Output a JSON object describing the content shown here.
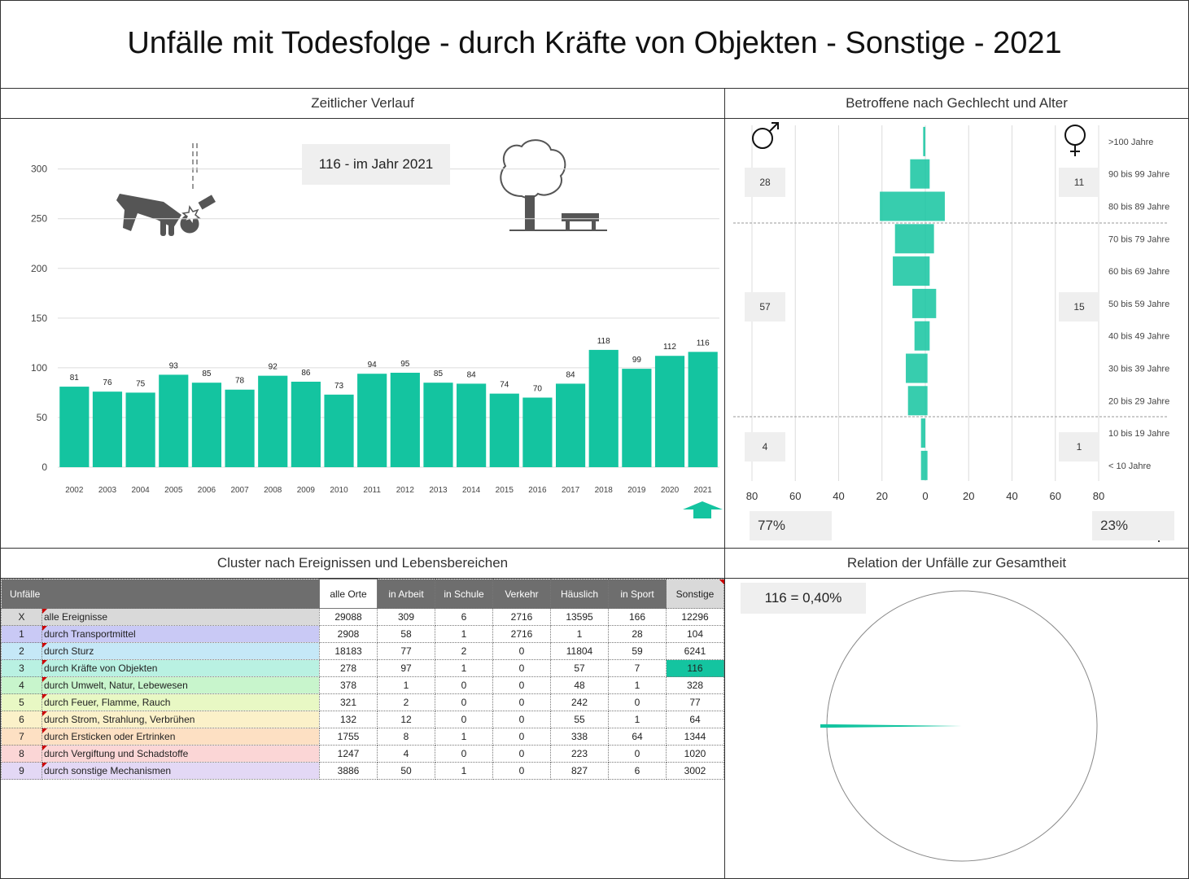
{
  "title": "Unfälle mit Todesfolge - durch Kräfte von Objekten - Sonstige - 2021",
  "colors": {
    "accent": "#14c4a0",
    "header_gray": "#6e6e6e"
  },
  "panels": {
    "timeline_title": "Zeitlicher Verlauf",
    "pyramid_title": "Betroffene nach Gechlecht und Alter",
    "cluster_title": "Cluster nach Ereignissen und Lebensbereichen",
    "relation_title": "Relation der Unfälle zur Gesamtheit"
  },
  "timeline_callout": "116 - im Jahr 2021",
  "pyramid": {
    "male_pct": "77%",
    "female_pct": "23%",
    "male_groups": [
      "28",
      "57",
      "4"
    ],
    "female_groups": [
      "11",
      "15",
      "1"
    ]
  },
  "relation_callout": "116 =  0,40%",
  "chart_data": [
    {
      "type": "bar",
      "title": "Zeitlicher Verlauf",
      "categories": [
        "2002",
        "2003",
        "2004",
        "2005",
        "2006",
        "2007",
        "2008",
        "2009",
        "2010",
        "2011",
        "2012",
        "2013",
        "2014",
        "2015",
        "2016",
        "2017",
        "2018",
        "2019",
        "2020",
        "2021"
      ],
      "values": [
        81,
        76,
        75,
        93,
        85,
        78,
        92,
        86,
        73,
        94,
        95,
        85,
        84,
        74,
        70,
        84,
        118,
        99,
        112,
        116
      ],
      "ylim": [
        0,
        330
      ],
      "yticks": [
        "0",
        "50",
        "100",
        "150",
        "200",
        "250",
        "300"
      ],
      "grid": true
    },
    {
      "type": "bar",
      "title": "Betroffene nach Gechlecht und Alter",
      "orientation": "horizontal",
      "categories": [
        ">100 Jahre",
        "90 bis 99 Jahre",
        "80 bis 89 Jahre",
        "70 bis 79 Jahre",
        "60 bis 69 Jahre",
        "50 bis 59 Jahre",
        "40 bis 49 Jahre",
        "30 bis 39 Jahre",
        "20 bis 29 Jahre",
        "10 bis 19 Jahre",
        "< 10 Jahre"
      ],
      "series": [
        {
          "values": [
            1,
            7,
            21,
            14,
            15,
            6,
            5,
            9,
            8,
            2,
            2
          ]
        },
        {
          "values": [
            0,
            2,
            9,
            4,
            2,
            5,
            2,
            1,
            1,
            0,
            1
          ]
        }
      ],
      "xticks": [
        "80",
        "60",
        "40",
        "20",
        "0",
        "20",
        "40",
        "60",
        "80"
      ],
      "xlim": [
        -80,
        80
      ]
    },
    {
      "type": "pie",
      "title": "Relation der Unfälle zur Gesamtheit",
      "values": [
        0.4,
        99.6
      ]
    }
  ],
  "table": {
    "headers": [
      "Unfälle",
      "alle Orte",
      "in Arbeit",
      "in Schule",
      "Verkehr",
      "Häuslich",
      "in Sport",
      "Sonstige"
    ],
    "rows": [
      {
        "id": "X",
        "label": "alle Ereignisse",
        "color": "#d9d9d9",
        "values": [
          "29088",
          "309",
          "6",
          "2716",
          "13595",
          "166",
          "12296"
        ]
      },
      {
        "id": "1",
        "label": "durch Transportmittel",
        "color": "#c9c9f5",
        "values": [
          "2908",
          "58",
          "1",
          "2716",
          "1",
          "28",
          "104"
        ]
      },
      {
        "id": "2",
        "label": "durch Sturz",
        "color": "#c5e8f7",
        "values": [
          "18183",
          "77",
          "2",
          "0",
          "11804",
          "59",
          "6241"
        ]
      },
      {
        "id": "3",
        "label": "durch Kräfte von Objekten",
        "color": "#b9f1e2",
        "values": [
          "278",
          "97",
          "1",
          "0",
          "57",
          "7",
          "116"
        ]
      },
      {
        "id": "4",
        "label": "durch Umwelt, Natur, Lebewesen",
        "color": "#c8f5cc",
        "values": [
          "378",
          "1",
          "0",
          "0",
          "48",
          "1",
          "328"
        ]
      },
      {
        "id": "5",
        "label": "durch Feuer, Flamme, Rauch",
        "color": "#e8f8c4",
        "values": [
          "321",
          "2",
          "0",
          "0",
          "242",
          "0",
          "77"
        ]
      },
      {
        "id": "6",
        "label": "durch Strom, Strahlung, Verbrühen",
        "color": "#fbf1c9",
        "values": [
          "132",
          "12",
          "0",
          "0",
          "55",
          "1",
          "64"
        ]
      },
      {
        "id": "7",
        "label": "durch Ersticken oder Ertrinken",
        "color": "#fde0c3",
        "values": [
          "1755",
          "8",
          "1",
          "0",
          "338",
          "64",
          "1344"
        ]
      },
      {
        "id": "8",
        "label": "durch Vergiftung und Schadstoffe",
        "color": "#fbd6d6",
        "values": [
          "1247",
          "4",
          "0",
          "0",
          "223",
          "0",
          "1020"
        ]
      },
      {
        "id": "9",
        "label": "durch sonstige Mechanismen",
        "color": "#e3d8f5",
        "values": [
          "3886",
          "50",
          "1",
          "0",
          "827",
          "6",
          "3002"
        ]
      }
    ]
  }
}
